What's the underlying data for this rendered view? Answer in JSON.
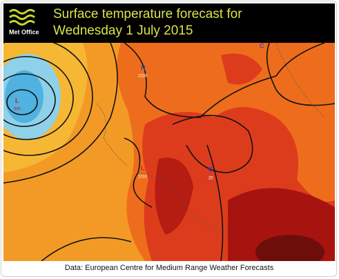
{
  "header": {
    "logo": "Met Office",
    "title_line1": "Surface temperature forecast for",
    "title_line2": "Wednesday 1 July 2015"
  },
  "map": {
    "labels": [
      {
        "symbol": "L",
        "pressure": 990
      },
      {
        "symbol": "H",
        "pressure": 1026
      },
      {
        "symbol": "L",
        "pressure": 1010
      },
      {
        "symbol": "C",
        "pressure": 20
      },
      {
        "symbol": "C"
      }
    ]
  },
  "caption": "Data: European Centre for Medium Range Weather Forecasts"
}
